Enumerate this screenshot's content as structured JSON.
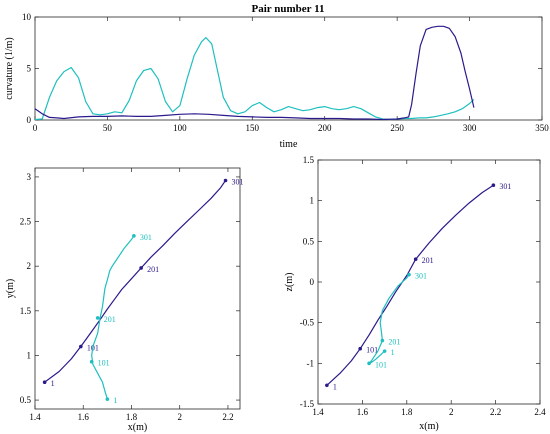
{
  "colors": {
    "teal": "#1fbfbf",
    "navy": "#2a1a8c",
    "axis": "#262626",
    "grid": "#000000"
  },
  "chart_data": [
    {
      "type": "line",
      "title": "Pair number 11",
      "xlabel": "time",
      "ylabel": "curvature (1/m)",
      "xlim": [
        0,
        350
      ],
      "ylim": [
        0,
        10
      ],
      "xticks": [
        "0",
        "50",
        "100",
        "150",
        "200",
        "250",
        "300",
        "350"
      ],
      "yticks": [
        "0",
        "5",
        "10"
      ],
      "series": [
        {
          "color": "#1fbfbf",
          "x": [
            0,
            5,
            10,
            15,
            20,
            25,
            30,
            35,
            40,
            45,
            50,
            55,
            60,
            65,
            70,
            75,
            80,
            85,
            90,
            95,
            100,
            105,
            110,
            115,
            118,
            122,
            126,
            130,
            135,
            140,
            145,
            150,
            155,
            160,
            165,
            170,
            175,
            180,
            185,
            190,
            195,
            200,
            205,
            210,
            215,
            220,
            225,
            230,
            235,
            240,
            245,
            250,
            255,
            260,
            265,
            270,
            275,
            280,
            285,
            290,
            295,
            300,
            303
          ],
          "y": [
            0.05,
            0.1,
            2.2,
            3.8,
            4.7,
            5.1,
            4.1,
            1.8,
            0.6,
            0.5,
            0.6,
            0.8,
            0.7,
            1.9,
            3.8,
            4.8,
            5.0,
            4.0,
            1.8,
            0.8,
            1.4,
            4.0,
            6.3,
            7.6,
            8.0,
            7.4,
            4.8,
            2.2,
            0.9,
            0.6,
            0.8,
            1.4,
            1.7,
            1.2,
            0.8,
            1.0,
            1.3,
            1.1,
            0.9,
            1.0,
            1.2,
            1.3,
            1.1,
            1.0,
            1.1,
            1.3,
            1.1,
            0.7,
            0.3,
            0.1,
            0.05,
            0.1,
            0.15,
            0.15,
            0.2,
            0.2,
            0.3,
            0.45,
            0.6,
            0.8,
            1.1,
            1.6,
            2.0
          ]
        },
        {
          "color": "#2a1a8c",
          "x": [
            0,
            5,
            10,
            15,
            20,
            30,
            40,
            50,
            60,
            70,
            80,
            90,
            100,
            110,
            120,
            130,
            140,
            150,
            160,
            170,
            180,
            190,
            200,
            210,
            220,
            230,
            240,
            250,
            255,
            258,
            260,
            263,
            266,
            270,
            274,
            278,
            282,
            286,
            290,
            294,
            297,
            300,
            303
          ],
          "y": [
            1.1,
            0.6,
            0.25,
            0.2,
            0.15,
            0.3,
            0.35,
            0.35,
            0.4,
            0.35,
            0.35,
            0.45,
            0.55,
            0.6,
            0.55,
            0.45,
            0.35,
            0.3,
            0.25,
            0.25,
            0.2,
            0.15,
            0.15,
            0.15,
            0.1,
            0.1,
            0.05,
            0.1,
            0.2,
            0.3,
            1.5,
            4.5,
            7.2,
            8.8,
            9.0,
            9.1,
            9.1,
            8.9,
            8.1,
            6.5,
            4.7,
            3.0,
            1.2
          ]
        }
      ]
    },
    {
      "type": "line",
      "xlabel": "x(m)",
      "ylabel": "y(m)",
      "xlim": [
        1.4,
        2.25
      ],
      "ylim": [
        0.4,
        3.1
      ],
      "xticks": [
        "1.4",
        "1.6",
        "1.8",
        "2",
        "2.2"
      ],
      "yticks": [
        "0.5",
        "1",
        "1.5",
        "2",
        "2.5",
        "3"
      ],
      "series": [
        {
          "color": "#2a1a8c",
          "x": [
            1.44,
            1.5,
            1.55,
            1.59,
            1.63,
            1.67,
            1.7,
            1.73,
            1.76,
            1.8,
            1.84,
            1.88,
            1.93,
            1.98,
            2.03,
            2.08,
            2.13,
            2.17,
            2.19
          ],
          "y": [
            0.7,
            0.82,
            0.96,
            1.1,
            1.25,
            1.4,
            1.52,
            1.63,
            1.74,
            1.86,
            1.98,
            2.1,
            2.23,
            2.37,
            2.5,
            2.63,
            2.76,
            2.88,
            2.96
          ],
          "points": [
            {
              "x": 1.44,
              "y": 0.7,
              "label": "1"
            },
            {
              "x": 1.59,
              "y": 1.1,
              "label": "101"
            },
            {
              "x": 1.84,
              "y": 1.98,
              "label": "201"
            },
            {
              "x": 2.19,
              "y": 2.96,
              "label": "301"
            }
          ]
        },
        {
          "color": "#1fbfbf",
          "x": [
            1.7,
            1.69,
            1.68,
            1.66,
            1.64,
            1.635,
            1.64,
            1.66,
            1.67,
            1.68,
            1.685,
            1.69,
            1.7,
            1.71,
            1.72,
            1.74,
            1.77,
            1.8,
            1.81
          ],
          "y": [
            0.51,
            0.6,
            0.7,
            0.8,
            0.9,
            1.0,
            1.1,
            1.25,
            1.42,
            1.55,
            1.65,
            1.75,
            1.85,
            1.95,
            2.0,
            2.08,
            2.2,
            2.3,
            2.34
          ],
          "points": [
            {
              "x": 1.7,
              "y": 0.51,
              "label": "1"
            },
            {
              "x": 1.635,
              "y": 0.93,
              "label": "101"
            },
            {
              "x": 1.66,
              "y": 1.42,
              "label": "201"
            },
            {
              "x": 1.81,
              "y": 2.34,
              "label": "301"
            }
          ]
        }
      ]
    },
    {
      "type": "line",
      "xlabel": "x(m)",
      "ylabel": "z(m)",
      "xlim": [
        1.4,
        2.4
      ],
      "ylim": [
        -1.5,
        1.5
      ],
      "xticks": [
        "1.4",
        "1.6",
        "1.8",
        "2",
        "2.2",
        "2.4"
      ],
      "yticks": [
        "-1.5",
        "-1",
        "-0.5",
        "0",
        "0.5",
        "1",
        "1.5"
      ],
      "series": [
        {
          "color": "#2a1a8c",
          "x": [
            1.44,
            1.5,
            1.55,
            1.59,
            1.63,
            1.67,
            1.71,
            1.75,
            1.8,
            1.84,
            1.9,
            1.96,
            2.02,
            2.08,
            2.14,
            2.19
          ],
          "y": [
            -1.27,
            -1.12,
            -0.97,
            -0.82,
            -0.65,
            -0.47,
            -0.3,
            -0.12,
            0.08,
            0.28,
            0.48,
            0.66,
            0.82,
            0.97,
            1.1,
            1.19
          ],
          "points": [
            {
              "x": 1.44,
              "y": -1.27,
              "label": "1"
            },
            {
              "x": 1.59,
              "y": -0.82,
              "label": "101"
            },
            {
              "x": 1.84,
              "y": 0.28,
              "label": "201"
            },
            {
              "x": 2.19,
              "y": 1.19,
              "label": "301"
            }
          ]
        },
        {
          "color": "#1fbfbf",
          "x": [
            1.7,
            1.68,
            1.66,
            1.64,
            1.63,
            1.64,
            1.67,
            1.69,
            1.685,
            1.68,
            1.69,
            1.72,
            1.76,
            1.8,
            1.81
          ],
          "y": [
            -0.85,
            -0.9,
            -0.95,
            -0.99,
            -1.0,
            -0.97,
            -0.85,
            -0.72,
            -0.6,
            -0.5,
            -0.35,
            -0.2,
            -0.05,
            0.05,
            0.09
          ],
          "points": [
            {
              "x": 1.7,
              "y": -0.85,
              "label": "1"
            },
            {
              "x": 1.63,
              "y": -1.0,
              "label": "101"
            },
            {
              "x": 1.69,
              "y": -0.72,
              "label": "201"
            },
            {
              "x": 1.81,
              "y": 0.09,
              "label": "301"
            }
          ]
        }
      ]
    }
  ]
}
